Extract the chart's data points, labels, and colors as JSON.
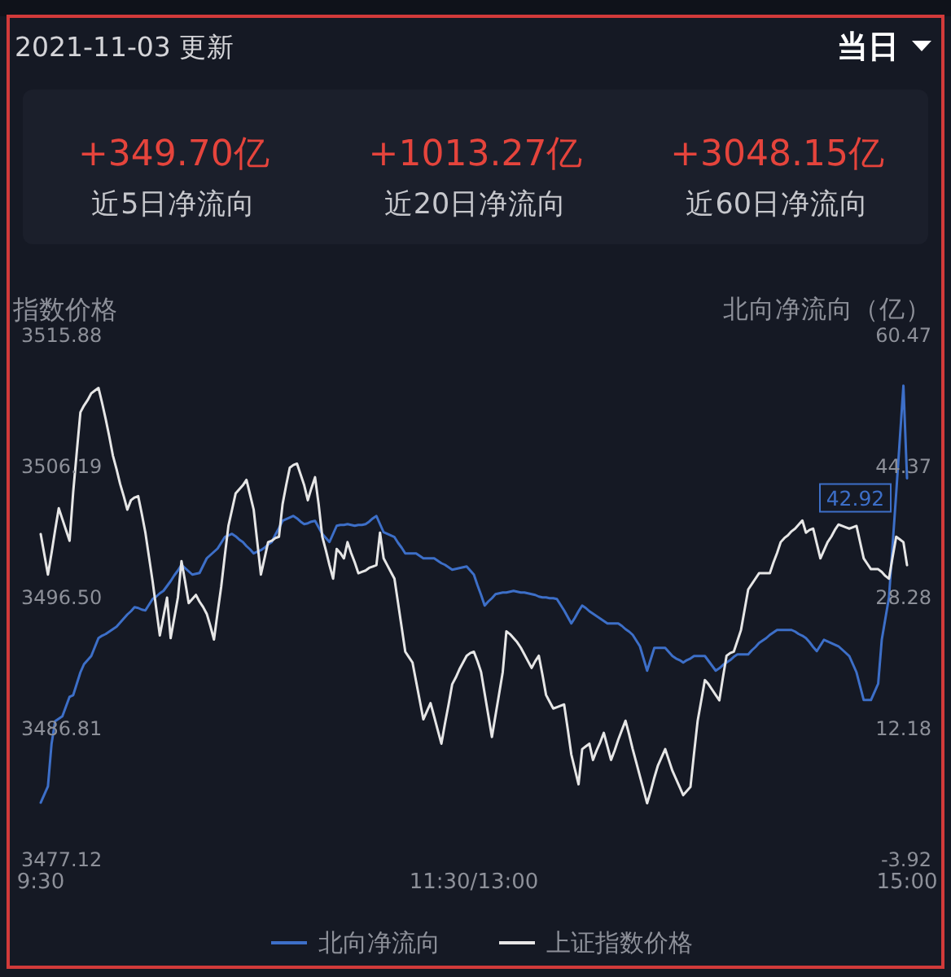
{
  "chart_data": {
    "type": "line",
    "title": "2021-11-03 更新",
    "annotations": [
      "当日",
      "+349.70亿",
      "近5日净流向",
      "+1013.27亿",
      "近20日净流向",
      "+3048.15亿",
      "近60日净流向"
    ],
    "ylabel": "指数价格",
    "y2label": "北向净流向（亿）",
    "categories": [
      "9:30",
      null,
      null,
      null,
      null,
      null,
      null,
      null,
      null,
      null,
      null,
      null,
      null,
      null,
      null,
      null,
      null,
      null,
      null,
      null,
      null,
      null,
      null,
      null,
      null,
      null,
      null,
      null,
      null,
      null,
      null,
      null,
      null,
      null,
      null,
      null,
      null,
      null,
      null,
      null,
      null,
      null,
      null,
      null,
      null,
      null,
      null,
      null,
      null,
      null,
      null,
      null,
      null,
      null,
      null,
      null,
      null,
      null,
      null,
      null,
      null,
      null,
      null,
      null,
      null,
      null,
      null,
      null,
      null,
      null,
      null,
      null,
      null,
      null,
      null,
      null,
      null,
      null,
      null,
      null,
      null,
      null,
      null,
      null,
      null,
      null,
      null,
      null,
      null,
      null,
      null,
      null,
      null,
      null,
      null,
      null,
      null,
      null,
      null,
      null,
      null,
      null,
      null,
      null,
      null,
      null,
      null,
      null,
      null,
      null,
      null,
      null,
      null,
      null,
      null,
      null,
      null,
      null,
      null,
      null,
      "11:30/13:00",
      null,
      null,
      null,
      null,
      null,
      null,
      null,
      null,
      null,
      null,
      null,
      null,
      null,
      null,
      null,
      null,
      null,
      null,
      null,
      null,
      null,
      null,
      null,
      null,
      null,
      null,
      null,
      null,
      null,
      null,
      null,
      null,
      null,
      null,
      null,
      null,
      null,
      null,
      null,
      null,
      null,
      null,
      null,
      null,
      null,
      null,
      null,
      null,
      null,
      null,
      null,
      null,
      null,
      null,
      null,
      null,
      null,
      null,
      null,
      null,
      null,
      null,
      null,
      null,
      null,
      null,
      null,
      null,
      null,
      null,
      null,
      null,
      null,
      null,
      null,
      null,
      null,
      null,
      null,
      null,
      null,
      null,
      null,
      null,
      null,
      null,
      null,
      null,
      null,
      null,
      null,
      null,
      null,
      null,
      null,
      null,
      null,
      null,
      null,
      null,
      null,
      null,
      null,
      null,
      null,
      null,
      null,
      null,
      null,
      null,
      null,
      null,
      null,
      null,
      null,
      null,
      null,
      null,
      null,
      "15:00"
    ],
    "ylim": [
      3477.12,
      3515.88
    ],
    "yticks": [
      3477.12,
      3486.81,
      {
        "value": 3496.5,
        "label": "3496.50"
      },
      3506.19,
      3515.88
    ],
    "y2lim": [
      -3.92,
      60.47
    ],
    "y2ticks": [
      -3.92,
      12.18,
      28.28,
      44.37,
      60.47
    ],
    "legend": "bottom",
    "series": [
      {
        "name": "北向净流向",
        "color": "#3d6fc8",
        "axis": "y2",
        "values": [
          3.1,
          4.1,
          5.1,
          10.3,
          13.1,
          13.4,
          13.7,
          14.9,
          16.1,
          16.3,
          17.7,
          19.1,
          20.1,
          20.6,
          21.1,
          22.2,
          23.3,
          23.6,
          23.8,
          24.1,
          24.4,
          24.7,
          25.2,
          25.7,
          26.2,
          26.6,
          27.1,
          27.0,
          26.8,
          26.7,
          27.4,
          28.1,
          28.4,
          28.8,
          29.1,
          29.7,
          30.3,
          31.0,
          31.6,
          32.3,
          31.9,
          31.5,
          31.1,
          31.2,
          31.3,
          32.2,
          33.1,
          33.5,
          33.9,
          34.3,
          35.0,
          35.7,
          35.9,
          36.1,
          35.8,
          35.4,
          35.1,
          34.6,
          34.2,
          33.7,
          33.9,
          34.1,
          34.4,
          34.8,
          35.1,
          36.0,
          36.8,
          37.7,
          37.9,
          38.1,
          38.3,
          38.0,
          37.6,
          37.3,
          37.4,
          37.6,
          37.7,
          36.9,
          36.1,
          35.6,
          35.1,
          36.1,
          37.1,
          37.2,
          37.2,
          37.3,
          37.2,
          37.1,
          37.2,
          37.2,
          37.3,
          37.6,
          38.0,
          38.3,
          37.3,
          36.3,
          36.1,
          35.9,
          35.7,
          35.0,
          34.4,
          33.7,
          33.7,
          33.7,
          33.7,
          33.4,
          33.1,
          33.1,
          33.1,
          33.1,
          32.8,
          32.5,
          32.3,
          32.0,
          31.7,
          31.8,
          31.9,
          32.0,
          32.1,
          31.6,
          31.1,
          29.8,
          28.6,
          27.3,
          27.8,
          28.2,
          28.7,
          28.8,
          28.9,
          28.9,
          29.0,
          29.1,
          29.0,
          28.9,
          28.9,
          28.8,
          28.7,
          28.6,
          28.4,
          28.3,
          28.3,
          28.2,
          28.2,
          28.1,
          27.4,
          26.7,
          25.9,
          25.1,
          25.8,
          26.6,
          27.3,
          27.0,
          26.6,
          26.3,
          26.0,
          25.7,
          25.4,
          25.1,
          25.1,
          25.1,
          25.1,
          24.8,
          24.4,
          24.1,
          23.7,
          23.0,
          22.3,
          20.8,
          19.3,
          20.7,
          22.1,
          22.1,
          22.1,
          22.1,
          21.6,
          21.1,
          20.8,
          20.6,
          20.3,
          20.6,
          20.8,
          21.1,
          21.1,
          21.1,
          21.1,
          20.5,
          19.9,
          19.3,
          19.6,
          20.0,
          20.3,
          20.6,
          21.0,
          21.3,
          21.3,
          21.3,
          21.3,
          21.8,
          22.2,
          22.7,
          23.0,
          23.3,
          23.7,
          24.0,
          24.3,
          24.3,
          24.3,
          24.3,
          24.3,
          24.1,
          23.8,
          23.6,
          23.3,
          22.8,
          22.2,
          21.7,
          22.4,
          23.1,
          22.9,
          22.7,
          22.5,
          22.3,
          21.9,
          21.5,
          21.1,
          20.1,
          19.1,
          17.4,
          15.7,
          15.7,
          15.7,
          16.7,
          17.7,
          23.1,
          25.7,
          28.3,
          34.7,
          41.1,
          47.7,
          54.3,
          42.92
        ],
        "value_labels": [
          null,
          null,
          null,
          null,
          null,
          null,
          null,
          null,
          null,
          null,
          null,
          null,
          null,
          null,
          null,
          null,
          null,
          null,
          null,
          null,
          null,
          null,
          null,
          null,
          null,
          null,
          null,
          null,
          null,
          null,
          null,
          null,
          null,
          null,
          null,
          null,
          null,
          null,
          null,
          null,
          null,
          null,
          null,
          null,
          null,
          null,
          null,
          null,
          null,
          null,
          null,
          null,
          null,
          null,
          null,
          null,
          null,
          null,
          null,
          null,
          null,
          null,
          null,
          null,
          null,
          null,
          null,
          null,
          null,
          null,
          null,
          null,
          null,
          null,
          null,
          null,
          null,
          null,
          null,
          null,
          null,
          null,
          null,
          null,
          null,
          null,
          null,
          null,
          null,
          null,
          null,
          null,
          null,
          null,
          null,
          null,
          null,
          null,
          null,
          null,
          null,
          null,
          null,
          null,
          null,
          null,
          null,
          null,
          null,
          null,
          null,
          null,
          null,
          null,
          null,
          null,
          null,
          null,
          null,
          null,
          null,
          null,
          null,
          null,
          null,
          null,
          null,
          null,
          null,
          null,
          null,
          null,
          null,
          null,
          null,
          null,
          null,
          null,
          null,
          null,
          null,
          null,
          null,
          null,
          null,
          null,
          null,
          null,
          null,
          null,
          null,
          null,
          null,
          null,
          null,
          null,
          null,
          null,
          null,
          null,
          null,
          null,
          null,
          null,
          null,
          null,
          null,
          null,
          null,
          null,
          null,
          null,
          null,
          null,
          null,
          null,
          null,
          null,
          null,
          null,
          null,
          null,
          null,
          null,
          null,
          null,
          null,
          null,
          null,
          null,
          null,
          null,
          null,
          null,
          null,
          null,
          null,
          null,
          null,
          null,
          null,
          null,
          null,
          null,
          null,
          null,
          null,
          null,
          null,
          null,
          null,
          null,
          null,
          null,
          null,
          null,
          null,
          null,
          null,
          null,
          null,
          null,
          null,
          null,
          null,
          null,
          null,
          null,
          null,
          null,
          null,
          null,
          null,
          null,
          null,
          null,
          null,
          null,
          null,
          null,
          "42.92"
        ]
      },
      {
        "name": "上证指数价格",
        "color": "#e6e6e6",
        "values": [
          3501.2,
          3499.7,
          3498.2,
          3499.8,
          3501.5,
          3503.1,
          3502.3,
          3501.5,
          3500.7,
          3504.3,
          3507.3,
          3510.2,
          3510.7,
          3511.1,
          3511.6,
          3511.8,
          3512.0,
          3510.9,
          3509.7,
          3508.4,
          3507.0,
          3506.0,
          3504.9,
          3504.0,
          3503.0,
          3503.7,
          3503.9,
          3504.0,
          3502.7,
          3501.3,
          3499.5,
          3497.7,
          3495.7,
          3493.7,
          3495.1,
          3496.5,
          3493.5,
          3495.0,
          3496.5,
          3499.2,
          3497.7,
          3496.1,
          3496.4,
          3496.7,
          3496.2,
          3495.8,
          3495.3,
          3494.4,
          3493.4,
          3495.4,
          3497.3,
          3499.6,
          3501.8,
          3503.0,
          3504.2,
          3504.5,
          3504.8,
          3505.2,
          3504.1,
          3503.0,
          3500.6,
          3498.2,
          3499.4,
          3500.6,
          3500.7,
          3500.9,
          3501.0,
          3503.4,
          3504.8,
          3506.1,
          3506.3,
          3506.4,
          3505.6,
          3504.8,
          3503.7,
          3504.6,
          3505.4,
          3503.4,
          3501.0,
          3500.0,
          3498.9,
          3497.9,
          3500.1,
          3499.8,
          3499.4,
          3500.6,
          3499.8,
          3499.1,
          3498.3,
          3498.4,
          3498.5,
          3498.7,
          3498.8,
          3498.9,
          3501.3,
          3499.4,
          3498.9,
          3498.4,
          3497.9,
          3496.1,
          3494.3,
          3492.5,
          3492.1,
          3491.7,
          3490.3,
          3488.9,
          3487.5,
          3488.1,
          3488.7,
          3487.7,
          3486.7,
          3485.7,
          3487.2,
          3488.6,
          3490.1,
          3490.6,
          3491.2,
          3491.7,
          3492.2,
          3492.4,
          3492.5,
          3491.8,
          3491.0,
          3489.4,
          3487.8,
          3486.2,
          3487.8,
          3489.4,
          3491.0,
          3494.0,
          3493.8,
          3493.5,
          3493.2,
          3492.8,
          3492.3,
          3491.8,
          3491.3,
          3491.8,
          3492.2,
          3490.8,
          3489.3,
          3488.8,
          3488.3,
          3488.4,
          3488.5,
          3488.6,
          3486.8,
          3484.9,
          3483.8,
          3482.7,
          3485.3,
          3485.5,
          3485.7,
          3484.5,
          3485.2,
          3485.8,
          3486.5,
          3485.5,
          3484.5,
          3485.2,
          3486.0,
          3486.7,
          3487.4,
          3486.4,
          3485.3,
          3484.3,
          3483.3,
          3482.3,
          3481.3,
          3482.2,
          3483.2,
          3484.1,
          3484.7,
          3485.3,
          3484.5,
          3483.7,
          3483.1,
          3482.5,
          3481.9,
          3482.2,
          3482.5,
          3485.0,
          3487.4,
          3488.9,
          3490.4,
          3490.1,
          3489.7,
          3489.3,
          3488.9,
          3490.6,
          3492.2,
          3492.4,
          3492.5,
          3493.3,
          3494.1,
          3495.6,
          3497.1,
          3497.5,
          3497.9,
          3498.3,
          3498.3,
          3498.3,
          3498.3,
          3499.1,
          3499.8,
          3500.6,
          3500.9,
          3501.1,
          3501.4,
          3501.6,
          3501.9,
          3502.2,
          3501.3,
          3501.5,
          3501.6,
          3500.5,
          3499.4,
          3500.0,
          3500.6,
          3501.0,
          3501.5,
          3501.9,
          3501.8,
          3501.7,
          3501.6,
          3501.7,
          3501.8,
          3500.6,
          3499.4,
          3499.0,
          3498.6,
          3498.6,
          3498.6,
          3498.4,
          3498.1,
          3497.9,
          3499.5,
          3501.0,
          3500.8,
          3500.6,
          3498.9
        ]
      }
    ]
  }
}
